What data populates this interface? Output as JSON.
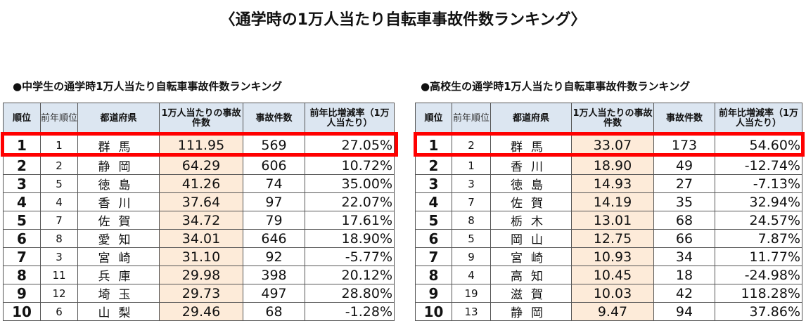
{
  "title": "〈通学時の1万人当たり自転車事故件数ランキング〉",
  "headers": {
    "rank": "順位",
    "prev_rank": "前年順位",
    "prefecture": "都道府県",
    "rate": "1万人当たりの事故件数",
    "count": "事故件数",
    "change": "前年比増減率（1万人当たり）"
  },
  "accent": "#ff0000",
  "tables": [
    {
      "subtitle": "●中学生の通学時1万人当たり自転車事故件数ランキング",
      "rows": [
        [
          "1",
          "1",
          "群馬",
          "111.95",
          "569",
          "27.05%"
        ],
        [
          "2",
          "2",
          "静岡",
          "64.29",
          "606",
          "10.72%"
        ],
        [
          "3",
          "5",
          "徳島",
          "41.26",
          "74",
          "35.00%"
        ],
        [
          "4",
          "4",
          "香川",
          "37.64",
          "97",
          "22.07%"
        ],
        [
          "5",
          "7",
          "佐賀",
          "34.72",
          "79",
          "17.61%"
        ],
        [
          "6",
          "8",
          "愛知",
          "34.01",
          "646",
          "18.90%"
        ],
        [
          "7",
          "3",
          "宮崎",
          "31.10",
          "92",
          "-5.77%"
        ],
        [
          "8",
          "11",
          "兵庫",
          "29.98",
          "398",
          "20.12%"
        ],
        [
          "9",
          "12",
          "埼玉",
          "29.73",
          "497",
          "28.80%"
        ],
        [
          "10",
          "6",
          "山梨",
          "29.46",
          "68",
          "-1.28%"
        ]
      ]
    },
    {
      "subtitle": "●高校生の通学時1万人当たり自転車事故件数ランキング",
      "rows": [
        [
          "1",
          "2",
          "群馬",
          "33.07",
          "173",
          "54.60%"
        ],
        [
          "2",
          "1",
          "香川",
          "18.90",
          "49",
          "-12.74%"
        ],
        [
          "3",
          "3",
          "徳島",
          "14.93",
          "27",
          "-7.13%"
        ],
        [
          "4",
          "7",
          "佐賀",
          "14.19",
          "35",
          "32.94%"
        ],
        [
          "5",
          "8",
          "栃木",
          "13.01",
          "68",
          "24.57%"
        ],
        [
          "6",
          "5",
          "岡山",
          "12.75",
          "66",
          "7.87%"
        ],
        [
          "7",
          "9",
          "宮崎",
          "10.93",
          "34",
          "11.77%"
        ],
        [
          "8",
          "4",
          "高知",
          "10.45",
          "18",
          "-24.98%"
        ],
        [
          "9",
          "19",
          "滋賀",
          "10.03",
          "42",
          "118.28%"
        ],
        [
          "10",
          "13",
          "静岡",
          "9.47",
          "94",
          "37.86%"
        ]
      ]
    }
  ]
}
